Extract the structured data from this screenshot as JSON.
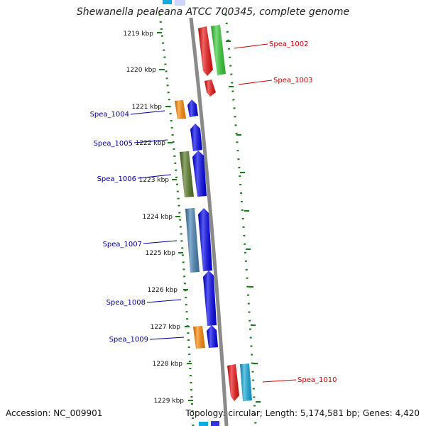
{
  "title": "Shewanella pealeana ATCC 700345, complete genome",
  "accession": "Accession: NC_009901",
  "summary": "Topology: circular; Length: 5,174,581 bp; Genes: 4,420",
  "ticks": [
    "1219 kbp",
    "1220 kbp",
    "1221 kbp",
    "1222 kbp",
    "1223 kbp",
    "1224 kbp",
    "1225 kbp",
    "1226 kbp",
    "1227 kbp",
    "1228 kbp",
    "1229 kbp"
  ],
  "genes": [
    {
      "name": "Spea_1002",
      "strand": "plus",
      "color": "#cc0000"
    },
    {
      "name": "Spea_1003",
      "strand": "plus",
      "color": "#cc0000"
    },
    {
      "name": "Spea_1004",
      "strand": "minus",
      "color": "#000099"
    },
    {
      "name": "Spea_1005",
      "strand": "minus",
      "color": "#000099"
    },
    {
      "name": "Spea_1006",
      "strand": "minus",
      "color": "#000099"
    },
    {
      "name": "Spea_1007",
      "strand": "minus",
      "color": "#000099"
    },
    {
      "name": "Spea_1008",
      "strand": "minus",
      "color": "#000099"
    },
    {
      "name": "Spea_1009",
      "strand": "minus",
      "color": "#000099"
    },
    {
      "name": "Spea_1010",
      "strand": "plus",
      "color": "#cc0000"
    }
  ],
  "colors": {
    "backbone": "#8a8a8a",
    "tick": "#1a7a1a",
    "plus_label": "#cc0000",
    "minus_label": "#000099",
    "cog_red": "#ee1111",
    "cog_green": "#33cc33",
    "cog_orange": "#ff8800",
    "cog_blue": "#0000ee",
    "cog_olive": "#557722",
    "cog_steel": "#4682b4",
    "cog_cyan": "#11aadd"
  }
}
